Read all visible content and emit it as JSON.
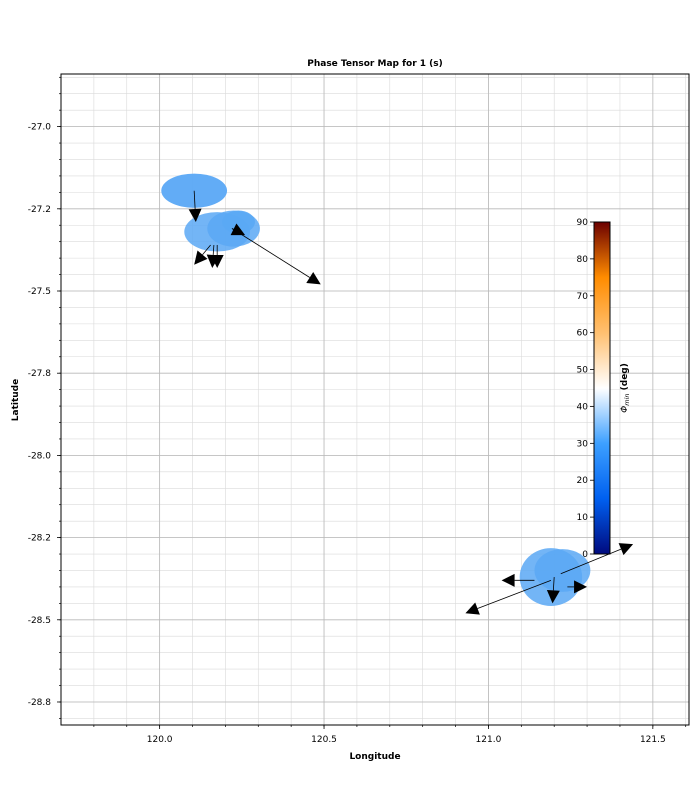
{
  "chart_data": {
    "type": "phase-tensor-map",
    "title": "Phase Tensor Map for 1 (s)",
    "xlabel": "Longitude",
    "ylabel": "Latitude",
    "xlim": [
      119.7,
      121.61
    ],
    "ylim": [
      -28.82,
      -26.84
    ],
    "xticks": [
      120.0,
      120.5,
      121.0,
      121.5
    ],
    "xtick_labels": [
      "120.0",
      "120.5",
      "121.0",
      "121.5"
    ],
    "yticks": [
      -27.0,
      -27.25,
      -27.5,
      -27.75,
      -28.0,
      -28.25,
      -28.5,
      -28.75
    ],
    "ytick_labels": [
      "-27.0",
      "-27.2",
      "-27.5",
      "-27.8",
      "-28.0",
      "-28.2",
      "-28.5",
      "-28.8"
    ],
    "grid": true,
    "ellipse_color": "#5aa8f5",
    "ellipses": [
      {
        "lon": 120.105,
        "lat": -27.195,
        "rx_deg": 0.1,
        "ry_deg": 0.052,
        "opacity": 0.95
      },
      {
        "lon": 120.175,
        "lat": -27.32,
        "rx_deg": 0.1,
        "ry_deg": 0.06,
        "opacity": 0.85
      },
      {
        "lon": 120.225,
        "lat": -27.31,
        "rx_deg": 0.08,
        "ry_deg": 0.055,
        "opacity": 0.85
      },
      {
        "lon": 120.24,
        "lat": -27.29,
        "rx_deg": 0.05,
        "ry_deg": 0.035,
        "opacity": 0.9
      },
      {
        "lon": 121.19,
        "lat": -28.37,
        "rx_deg": 0.095,
        "ry_deg": 0.088,
        "opacity": 0.85
      },
      {
        "lon": 121.225,
        "lat": -28.35,
        "rx_deg": 0.085,
        "ry_deg": 0.065,
        "opacity": 0.85
      }
    ],
    "arrows": [
      {
        "lon0": 120.105,
        "lat0": -27.195,
        "lon1": 120.11,
        "lat1": -27.29
      },
      {
        "lon0": 120.22,
        "lat0": -27.31,
        "lon1": 120.49,
        "lat1": -27.48
      },
      {
        "lon0": 120.22,
        "lat0": -27.31,
        "lon1": 120.26,
        "lat1": -27.33
      },
      {
        "lon0": 120.155,
        "lat0": -27.36,
        "lon1": 120.105,
        "lat1": -27.42
      },
      {
        "lon0": 120.165,
        "lat0": -27.36,
        "lon1": 120.16,
        "lat1": -27.43
      },
      {
        "lon0": 120.175,
        "lat0": -27.36,
        "lon1": 120.175,
        "lat1": -27.43
      },
      {
        "lon0": 121.2,
        "lat0": -28.37,
        "lon1": 121.195,
        "lat1": -28.45
      },
      {
        "lon0": 121.22,
        "lat0": -28.36,
        "lon1": 121.44,
        "lat1": -28.27
      },
      {
        "lon0": 121.19,
        "lat0": -28.38,
        "lon1": 120.93,
        "lat1": -28.48
      },
      {
        "lon0": 121.14,
        "lat0": -28.38,
        "lon1": 121.04,
        "lat1": -28.38
      },
      {
        "lon0": 121.24,
        "lat0": -28.4,
        "lon1": 121.3,
        "lat1": -28.4
      }
    ],
    "colorbar": {
      "label": "Φmin (deg)",
      "label_symbol": "Φ",
      "label_sub": "min",
      "label_unit": "(deg)",
      "min": 0,
      "max": 90,
      "ticks": [
        0,
        10,
        20,
        30,
        40,
        50,
        60,
        70,
        80,
        90
      ],
      "colormap": [
        "#000a7e",
        "#0060f0",
        "#3da0ff",
        "#ffffff",
        "#ffc070",
        "#ff8c00",
        "#6b0000"
      ]
    }
  }
}
